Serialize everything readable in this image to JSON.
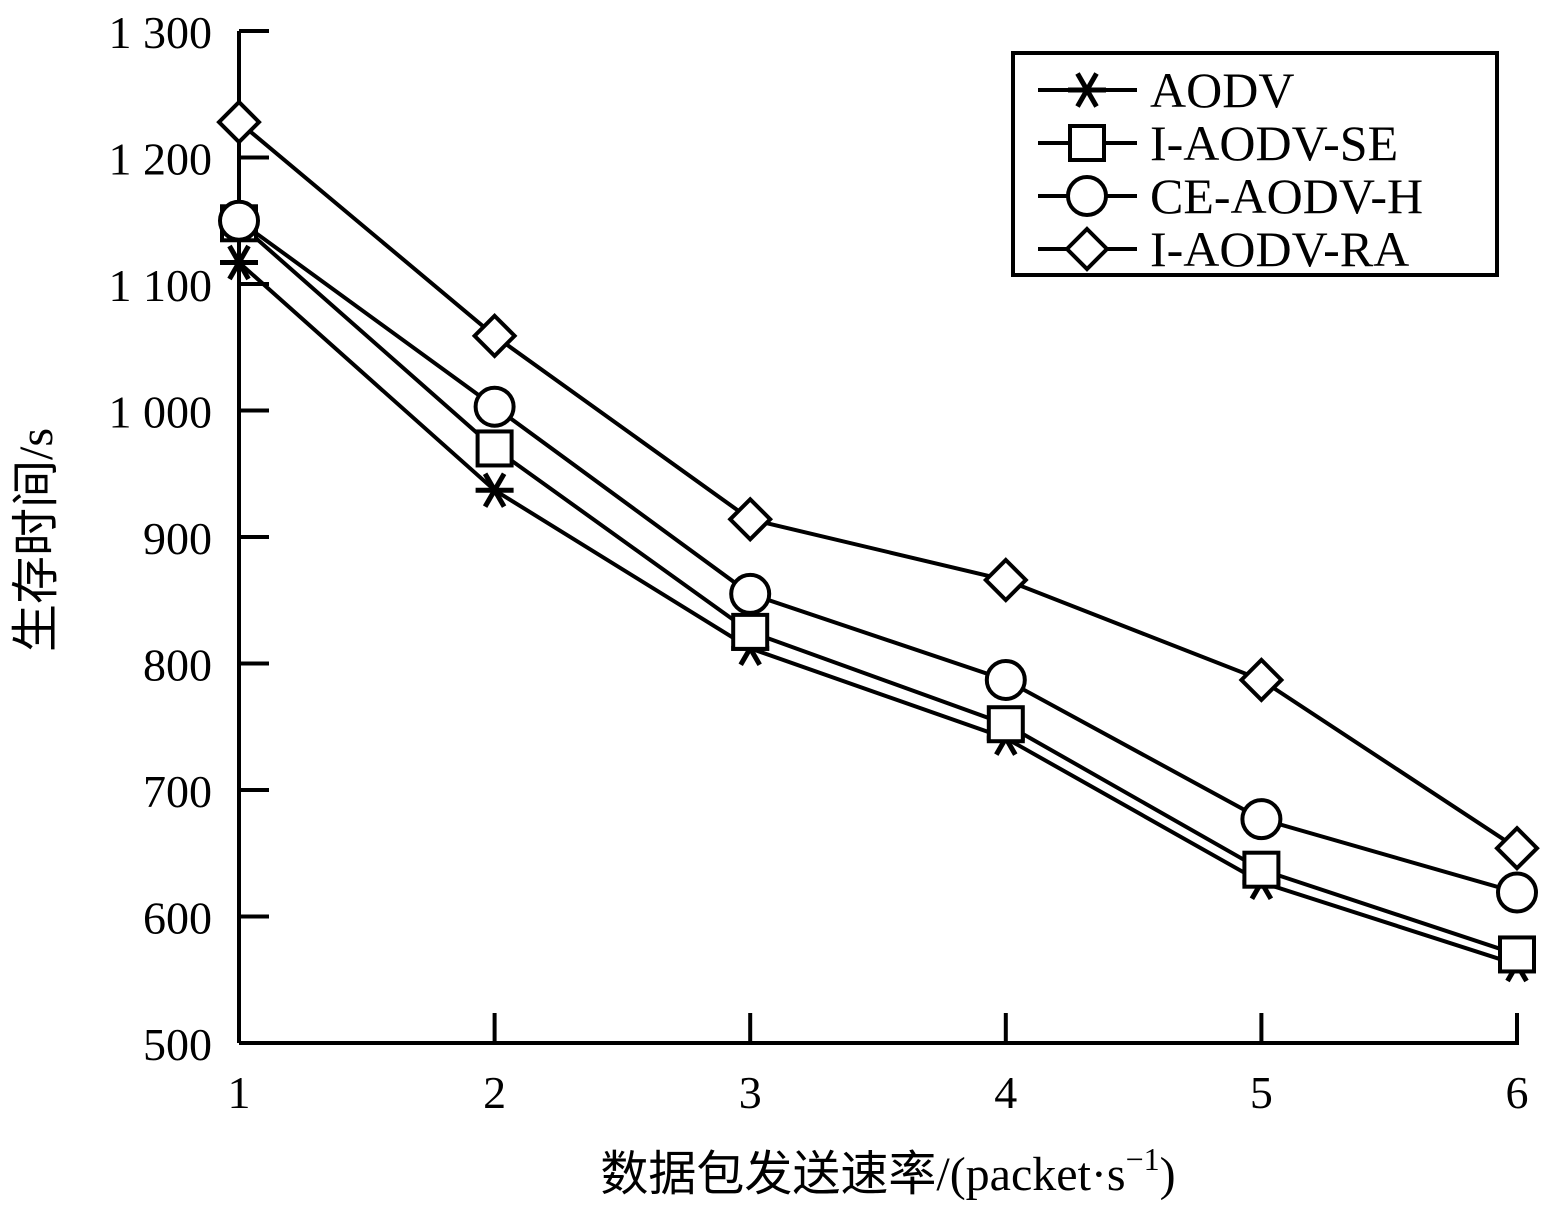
{
  "chart_data": {
    "type": "line",
    "x": [
      1,
      2,
      3,
      4,
      5,
      6
    ],
    "xlim": [
      1,
      6
    ],
    "ylim": [
      500,
      1300
    ],
    "xticks": [
      {
        "value": 1,
        "label": "1"
      },
      {
        "value": 2,
        "label": "2"
      },
      {
        "value": 3,
        "label": "3"
      },
      {
        "value": 4,
        "label": "4"
      },
      {
        "value": 5,
        "label": "5"
      },
      {
        "value": 6,
        "label": "6"
      }
    ],
    "yticks": [
      {
        "value": 500,
        "label": "500"
      },
      {
        "value": 600,
        "label": "600"
      },
      {
        "value": 700,
        "label": "700"
      },
      {
        "value": 800,
        "label": "800"
      },
      {
        "value": 900,
        "label": "900"
      },
      {
        "value": 1000,
        "label": "1 000"
      },
      {
        "value": 1100,
        "label": "1 100"
      },
      {
        "value": 1200,
        "label": "1 200"
      },
      {
        "value": 1300,
        "label": "1 300"
      }
    ],
    "xlabel": "数据包发送速率/(packet·s",
    "xlabel_sup": "−1",
    "xlabel_end": ")",
    "ylabel": "生存时间/s",
    "grid": false,
    "legend_position": "top-right",
    "series": [
      {
        "name": "AODV",
        "marker": "asterisk",
        "values": [
          1117,
          937,
          812,
          741,
          627,
          562
        ]
      },
      {
        "name": "I-AODV-SE",
        "marker": "square",
        "values": [
          1148,
          970,
          825,
          752,
          637,
          570
        ]
      },
      {
        "name": "CE-AODV-H",
        "marker": "circle",
        "values": [
          1150,
          1003,
          855,
          787,
          677,
          619
        ]
      },
      {
        "name": "I-AODV-RA",
        "marker": "diamond",
        "values": [
          1228,
          1059,
          914,
          866,
          787,
          654
        ]
      }
    ],
    "colors": {
      "line": "#000000",
      "background": "#ffffff"
    }
  }
}
